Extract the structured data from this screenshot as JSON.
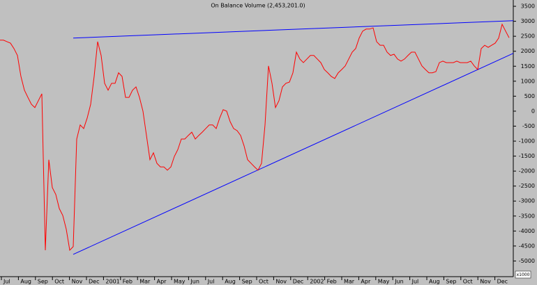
{
  "chart_data": {
    "type": "line",
    "title": "On Balance Volume (2,453,201.0)",
    "unit_label": "x1000",
    "month_labels": [
      "Jul",
      "Aug",
      "Sep",
      "Oct",
      "Nov",
      "Dec",
      "2001",
      "Feb",
      "Mar",
      "Apr",
      "May",
      "Jun",
      "Jul",
      "Aug",
      "Sep",
      "Oct",
      "Nov",
      "Dec",
      "2002",
      "Feb",
      "Mar",
      "Apr",
      "May",
      "Jun",
      "Jul",
      "Aug",
      "Sep",
      "Oct",
      "Nov",
      "Dec"
    ],
    "series": [
      {
        "color": "#ff0000",
        "values": [
          2370,
          2370,
          2320,
          2270,
          2090,
          1860,
          1160,
          700,
          460,
          230,
          120,
          350,
          580,
          -4640,
          -1620,
          -2550,
          -2780,
          -3250,
          -3480,
          -3940,
          -4640,
          -4520,
          -930,
          -460,
          -580,
          -230,
          230,
          1160,
          2320,
          1860,
          930,
          700,
          930,
          930,
          1280,
          1160,
          460,
          460,
          700,
          810,
          460,
          0,
          -810,
          -1620,
          -1390,
          -1740,
          -1860,
          -1860,
          -1970,
          -1860,
          -1510,
          -1280,
          -930,
          -930,
          -810,
          -700,
          -930,
          -810,
          -700,
          -580,
          -460,
          -460,
          -580,
          -230,
          50,
          0,
          -350,
          -580,
          -650,
          -810,
          -1160,
          -1620,
          -1740,
          -1860,
          -1970,
          -1740,
          -460,
          1510,
          930,
          120,
          350,
          810,
          930,
          970,
          1280,
          1970,
          1740,
          1620,
          1740,
          1860,
          1860,
          1740,
          1620,
          1390,
          1280,
          1160,
          1090,
          1280,
          1390,
          1510,
          1740,
          1970,
          2090,
          2440,
          2670,
          2740,
          2740,
          2780,
          2320,
          2200,
          2200,
          1970,
          1860,
          1900,
          1740,
          1670,
          1740,
          1860,
          1970,
          1970,
          1740,
          1510,
          1390,
          1280,
          1280,
          1320,
          1620,
          1670,
          1620,
          1620,
          1620,
          1670,
          1620,
          1620,
          1620,
          1670,
          1510,
          1390,
          2090,
          2200,
          2130,
          2200,
          2270,
          2440,
          2900,
          2670,
          2450
        ]
      }
    ],
    "trendlines": [
      {
        "color": "#0000ff",
        "values": [
          2440,
          3020
        ]
      },
      {
        "color": "#0000ff",
        "values": [
          -4780,
          1930
        ]
      }
    ],
    "ylim": [
      -5500,
      3710
    ],
    "yticks": [
      3500,
      3000,
      2500,
      2000,
      1500,
      1000,
      500,
      0,
      -500,
      -1000,
      -1500,
      -2000,
      -2500,
      -3000,
      -3500,
      -4000,
      -4500,
      -5000
    ]
  }
}
